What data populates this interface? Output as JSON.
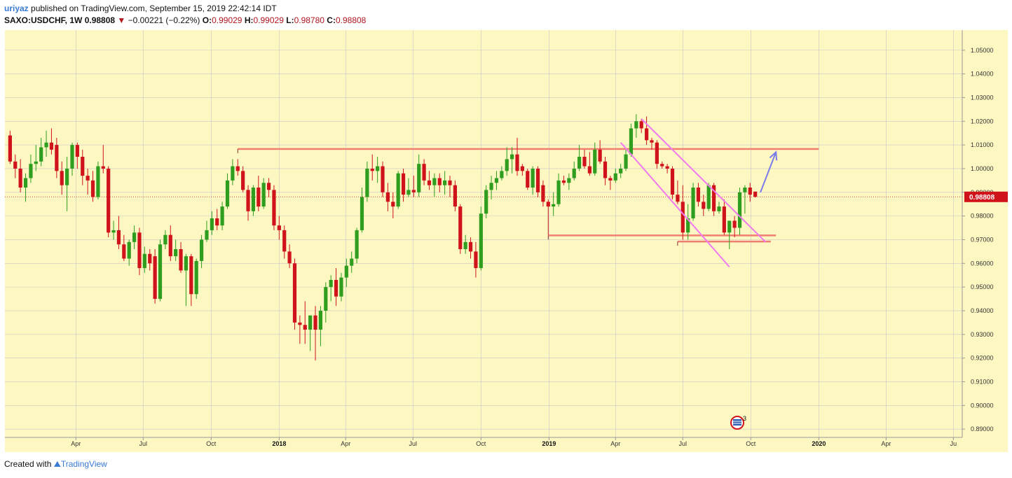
{
  "header": {
    "user": "uriyaz",
    "published": " published on TradingView.com, September 15, 2019 22:42:14 IDT",
    "symbol": "SAXO:USDCHF, 1W",
    "last": "0.98808",
    "arrow": "▼",
    "change": "−0.00221 (−0.22%)",
    "o_label": "O:",
    "o_val": "0.99029",
    "h_label": "H:",
    "h_val": "0.99029",
    "l_label": "L:",
    "l_val": "0.98780",
    "c_label": "C:",
    "c_val": "0.98808"
  },
  "footer": {
    "created": "Created with",
    "brand": "TradingView"
  },
  "event_badge": "3",
  "colors": {
    "background": "#fdf7c2",
    "grid": "#c8c8c8",
    "up": "#2f9e1f",
    "down": "#d0131b",
    "level": "#f07f71",
    "channel": "#f27af0",
    "arrow": "#7b7bea",
    "price_tag": "#d0131b"
  },
  "chart_data": {
    "type": "candlestick",
    "symbol": "SAXO:USDCHF",
    "interval": "1W",
    "ylim": [
      0.8865,
      1.0585
    ],
    "y_ticks": [
      "1.05000",
      "1.04000",
      "1.03000",
      "1.02000",
      "1.01000",
      "1.00000",
      "0.99000",
      "0.98000",
      "0.97000",
      "0.96000",
      "0.95000",
      "0.94000",
      "0.93000",
      "0.92000",
      "0.91000",
      "0.90000",
      "0.89000"
    ],
    "last_price_label": "0.98808",
    "x_ticks": [
      {
        "label": "Apr",
        "date": "2017-04-01",
        "bold": false
      },
      {
        "label": "Jul",
        "date": "2017-07-01",
        "bold": false
      },
      {
        "label": "Oct",
        "date": "2017-10-01",
        "bold": false
      },
      {
        "label": "2018",
        "date": "2018-01-01",
        "bold": true
      },
      {
        "label": "Apr",
        "date": "2018-04-01",
        "bold": false
      },
      {
        "label": "Jul",
        "date": "2018-07-01",
        "bold": false
      },
      {
        "label": "Oct",
        "date": "2018-10-01",
        "bold": false
      },
      {
        "label": "2019",
        "date": "2019-01-01",
        "bold": true
      },
      {
        "label": "Apr",
        "date": "2019-04-01",
        "bold": false
      },
      {
        "label": "Jul",
        "date": "2019-07-01",
        "bold": false
      },
      {
        "label": "Oct",
        "date": "2019-10-01",
        "bold": false
      },
      {
        "label": "2020",
        "date": "2020-01-01",
        "bold": true
      },
      {
        "label": "Apr",
        "date": "2020-04-01",
        "bold": false
      },
      {
        "label": "Ju",
        "date": "2020-07-01",
        "bold": false
      }
    ],
    "candles": [
      [
        "2017-01-02",
        1.014,
        1.016,
        1.002,
        1.003
      ],
      [
        "2017-01-09",
        1.003,
        1.006,
        0.996,
        1.0
      ],
      [
        "2017-01-16",
        1.0,
        1.004,
        0.99,
        0.992
      ],
      [
        "2017-01-23",
        0.992,
        0.998,
        0.986,
        0.996
      ],
      [
        "2017-01-30",
        0.996,
        1.006,
        0.994,
        1.002
      ],
      [
        "2017-02-06",
        1.002,
        1.01,
        0.999,
        1.003
      ],
      [
        "2017-02-13",
        1.003,
        1.013,
        1.001,
        1.009
      ],
      [
        "2017-02-20",
        1.009,
        1.016,
        1.005,
        1.011
      ],
      [
        "2017-02-27",
        1.011,
        1.017,
        1.006,
        1.008
      ],
      [
        "2017-03-06",
        1.01,
        1.013,
        0.996,
        0.999
      ],
      [
        "2017-03-13",
        0.999,
        1.003,
        0.989,
        0.993
      ],
      [
        "2017-03-20",
        0.993,
        1.005,
        0.982,
        1.0
      ],
      [
        "2017-03-27",
        1.0,
        1.011,
        0.997,
        1.01
      ],
      [
        "2017-04-03",
        1.01,
        1.011,
        1.0,
        1.005
      ],
      [
        "2017-04-10",
        1.005,
        1.008,
        0.993,
        0.997
      ],
      [
        "2017-04-17",
        0.997,
        1.0,
        0.989,
        0.995
      ],
      [
        "2017-04-24",
        0.995,
        0.999,
        0.986,
        0.988
      ],
      [
        "2017-05-01",
        0.988,
        1.003,
        0.987,
        1.001
      ],
      [
        "2017-05-08",
        1.001,
        1.01,
        0.998,
        1.0
      ],
      [
        "2017-05-15",
        1.0,
        1.001,
        0.971,
        0.973
      ],
      [
        "2017-05-22",
        0.973,
        0.978,
        0.97,
        0.974
      ],
      [
        "2017-05-29",
        0.974,
        0.98,
        0.966,
        0.968
      ],
      [
        "2017-06-05",
        0.968,
        0.972,
        0.961,
        0.962
      ],
      [
        "2017-06-12",
        0.962,
        0.97,
        0.959,
        0.969
      ],
      [
        "2017-06-19",
        0.969,
        0.976,
        0.966,
        0.973
      ],
      [
        "2017-06-26",
        0.973,
        0.975,
        0.955,
        0.958
      ],
      [
        "2017-07-03",
        0.958,
        0.967,
        0.956,
        0.964
      ],
      [
        "2017-07-10",
        0.964,
        0.966,
        0.957,
        0.96
      ],
      [
        "2017-07-17",
        0.963,
        0.966,
        0.943,
        0.945
      ],
      [
        "2017-07-24",
        0.945,
        0.97,
        0.944,
        0.968
      ],
      [
        "2017-07-31",
        0.968,
        0.974,
        0.966,
        0.972
      ],
      [
        "2017-08-07",
        0.972,
        0.976,
        0.961,
        0.963
      ],
      [
        "2017-08-14",
        0.963,
        0.97,
        0.961,
        0.966
      ],
      [
        "2017-08-21",
        0.966,
        0.969,
        0.956,
        0.957
      ],
      [
        "2017-08-28",
        0.957,
        0.964,
        0.942,
        0.963
      ],
      [
        "2017-09-04",
        0.963,
        0.964,
        0.942,
        0.947
      ],
      [
        "2017-09-11",
        0.947,
        0.962,
        0.945,
        0.961
      ],
      [
        "2017-09-18",
        0.961,
        0.972,
        0.958,
        0.97
      ],
      [
        "2017-09-25",
        0.97,
        0.978,
        0.969,
        0.974
      ],
      [
        "2017-10-02",
        0.974,
        0.982,
        0.972,
        0.979
      ],
      [
        "2017-10-09",
        0.979,
        0.983,
        0.974,
        0.976
      ],
      [
        "2017-10-16",
        0.976,
        0.986,
        0.974,
        0.984
      ],
      [
        "2017-10-23",
        0.984,
        0.998,
        0.983,
        0.995
      ],
      [
        "2017-10-30",
        0.995,
        1.004,
        0.993,
        1.001
      ],
      [
        "2017-11-06",
        1.001,
        1.004,
        0.997,
        0.999
      ],
      [
        "2017-11-13",
        0.999,
        1.001,
        0.99,
        0.991
      ],
      [
        "2017-11-20",
        0.991,
        0.993,
        0.978,
        0.982
      ],
      [
        "2017-11-27",
        0.982,
        0.993,
        0.98,
        0.992
      ],
      [
        "2017-12-04",
        0.992,
        0.997,
        0.982,
        0.984
      ],
      [
        "2017-12-11",
        0.984,
        0.996,
        0.983,
        0.994
      ],
      [
        "2017-12-18",
        0.994,
        0.996,
        0.988,
        0.991
      ],
      [
        "2017-12-25",
        0.991,
        0.993,
        0.974,
        0.976
      ],
      [
        "2018-01-01",
        0.976,
        0.98,
        0.97,
        0.974
      ],
      [
        "2018-01-08",
        0.974,
        0.976,
        0.962,
        0.965
      ],
      [
        "2018-01-15",
        0.965,
        0.968,
        0.958,
        0.96
      ],
      [
        "2018-01-22",
        0.96,
        0.962,
        0.932,
        0.935
      ],
      [
        "2018-01-29",
        0.935,
        0.938,
        0.926,
        0.934
      ],
      [
        "2018-02-05",
        0.934,
        0.944,
        0.926,
        0.932
      ],
      [
        "2018-02-12",
        0.932,
        0.938,
        0.923,
        0.938
      ],
      [
        "2018-02-19",
        0.938,
        0.942,
        0.919,
        0.932
      ],
      [
        "2018-02-26",
        0.932,
        0.942,
        0.925,
        0.94
      ],
      [
        "2018-03-05",
        0.94,
        0.952,
        0.935,
        0.95
      ],
      [
        "2018-03-12",
        0.95,
        0.955,
        0.944,
        0.953
      ],
      [
        "2018-03-19",
        0.953,
        0.958,
        0.942,
        0.946
      ],
      [
        "2018-03-26",
        0.946,
        0.956,
        0.944,
        0.954
      ],
      [
        "2018-04-02",
        0.954,
        0.962,
        0.95,
        0.959
      ],
      [
        "2018-04-09",
        0.959,
        0.965,
        0.956,
        0.962
      ],
      [
        "2018-04-16",
        0.962,
        0.975,
        0.96,
        0.974
      ],
      [
        "2018-04-23",
        0.974,
        0.992,
        0.973,
        0.988
      ],
      [
        "2018-04-30",
        0.988,
        1.003,
        0.986,
        1.0
      ],
      [
        "2018-05-07",
        1.0,
        1.006,
        0.995,
        0.999
      ],
      [
        "2018-05-14",
        0.999,
        1.005,
        0.994,
        1.001
      ],
      [
        "2018-05-21",
        1.001,
        1.003,
        0.988,
        0.99
      ],
      [
        "2018-05-28",
        0.99,
        0.994,
        0.982,
        0.986
      ],
      [
        "2018-06-04",
        0.986,
        0.99,
        0.979,
        0.984
      ],
      [
        "2018-06-11",
        0.984,
        0.999,
        0.983,
        0.998
      ],
      [
        "2018-06-18",
        0.998,
        1.0,
        0.986,
        0.989
      ],
      [
        "2018-06-25",
        0.989,
        0.996,
        0.988,
        0.991
      ],
      [
        "2018-07-02",
        0.991,
        0.997,
        0.988,
        0.99
      ],
      [
        "2018-07-09",
        0.99,
        1.006,
        0.988,
        1.002
      ],
      [
        "2018-07-16",
        1.002,
        1.004,
        0.993,
        0.995
      ],
      [
        "2018-07-23",
        0.995,
        0.999,
        0.991,
        0.993
      ],
      [
        "2018-07-30",
        0.993,
        0.998,
        0.988,
        0.996
      ],
      [
        "2018-08-06",
        0.996,
        0.998,
        0.99,
        0.993
      ],
      [
        "2018-08-13",
        0.993,
        0.999,
        0.989,
        0.995
      ],
      [
        "2018-08-20",
        0.995,
        0.997,
        0.988,
        0.993
      ],
      [
        "2018-08-27",
        0.993,
        0.995,
        0.982,
        0.984
      ],
      [
        "2018-09-03",
        0.984,
        0.985,
        0.964,
        0.966
      ],
      [
        "2018-09-10",
        0.966,
        0.972,
        0.964,
        0.969
      ],
      [
        "2018-09-17",
        0.969,
        0.971,
        0.962,
        0.965
      ],
      [
        "2018-09-24",
        0.965,
        0.969,
        0.954,
        0.958
      ],
      [
        "2018-10-01",
        0.958,
        0.984,
        0.957,
        0.981
      ],
      [
        "2018-10-08",
        0.981,
        0.993,
        0.979,
        0.991
      ],
      [
        "2018-10-15",
        0.991,
        0.997,
        0.987,
        0.994
      ],
      [
        "2018-10-22",
        0.994,
        0.999,
        0.991,
        0.996
      ],
      [
        "2018-10-29",
        0.996,
        1.001,
        0.995,
        0.999
      ],
      [
        "2018-11-05",
        0.999,
        1.009,
        0.997,
        1.004
      ],
      [
        "2018-11-12",
        1.004,
        1.009,
        0.998,
        1.006
      ],
      [
        "2018-11-19",
        1.006,
        1.013,
        0.997,
        0.999
      ],
      [
        "2018-11-26",
        1.001,
        1.002,
        0.997,
        0.999
      ],
      [
        "2018-12-03",
        0.999,
        1.0,
        0.991,
        0.992
      ],
      [
        "2018-12-10",
        0.992,
        1.001,
        0.989,
        1.0
      ],
      [
        "2018-12-17",
        1.0,
        1.001,
        0.988,
        0.99
      ],
      [
        "2018-12-24",
        0.993,
        0.995,
        0.984,
        0.986
      ],
      [
        "2018-12-31",
        0.986,
        0.987,
        0.972,
        0.984
      ],
      [
        "2019-01-07",
        0.984,
        0.99,
        0.98,
        0.985
      ],
      [
        "2019-01-14",
        0.985,
        0.998,
        0.984,
        0.995
      ],
      [
        "2019-01-21",
        0.995,
        0.997,
        0.993,
        0.994
      ],
      [
        "2019-01-28",
        0.994,
        0.998,
        0.991,
        0.996
      ],
      [
        "2019-02-04",
        0.996,
        1.003,
        0.995,
        1.0
      ],
      [
        "2019-02-11",
        1.0,
        1.01,
        0.999,
        1.005
      ],
      [
        "2019-02-18",
        1.005,
        1.008,
        1.0,
        1.001
      ],
      [
        "2019-02-25",
        1.001,
        1.007,
        0.997,
        0.998
      ],
      [
        "2019-03-04",
        0.998,
        1.011,
        0.997,
        1.008
      ],
      [
        "2019-03-11",
        1.008,
        1.012,
        1.002,
        1.003
      ],
      [
        "2019-03-18",
        1.003,
        1.005,
        0.993,
        0.996
      ],
      [
        "2019-03-25",
        0.996,
        0.997,
        0.991,
        0.995
      ],
      [
        "2019-04-01",
        0.995,
        1.0,
        0.994,
        0.998
      ],
      [
        "2019-04-08",
        0.998,
        1.002,
        0.996,
        1.0
      ],
      [
        "2019-04-15",
        1.0,
        1.008,
        0.999,
        1.006
      ],
      [
        "2019-04-22",
        1.006,
        1.019,
        1.005,
        1.017
      ],
      [
        "2019-04-29",
        1.017,
        1.023,
        1.013,
        1.02
      ],
      [
        "2019-05-06",
        1.02,
        1.021,
        1.015,
        1.017
      ],
      [
        "2019-05-13",
        1.017,
        1.022,
        1.01,
        1.012
      ],
      [
        "2019-05-20",
        1.012,
        1.013,
        1.008,
        1.011
      ],
      [
        "2019-05-27",
        1.011,
        1.012,
        1.0,
        1.002
      ],
      [
        "2019-06-03",
        1.002,
        1.003,
        1.0,
        1.001
      ],
      [
        "2019-06-10",
        1.001,
        1.002,
        0.998,
        1.0
      ],
      [
        "2019-06-17",
        1.0,
        1.001,
        0.987,
        0.989
      ],
      [
        "2019-06-24",
        0.989,
        0.995,
        0.985,
        0.986
      ],
      [
        "2019-07-01",
        0.986,
        0.993,
        0.97,
        0.973
      ],
      [
        "2019-07-08",
        0.973,
        0.985,
        0.97,
        0.979
      ],
      [
        "2019-07-15",
        0.979,
        0.994,
        0.978,
        0.992
      ],
      [
        "2019-07-22",
        0.992,
        0.994,
        0.984,
        0.986
      ],
      [
        "2019-07-29",
        0.986,
        0.989,
        0.98,
        0.983
      ],
      [
        "2019-08-05",
        0.983,
        0.994,
        0.982,
        0.993
      ],
      [
        "2019-08-12",
        0.993,
        0.994,
        0.98,
        0.982
      ],
      [
        "2019-08-19",
        0.982,
        0.986,
        0.981,
        0.984
      ],
      [
        "2019-08-26",
        0.984,
        0.987,
        0.972,
        0.973
      ],
      [
        "2019-09-02",
        0.973,
        0.978,
        0.966,
        0.978
      ],
      [
        "2019-09-09",
        0.978,
        0.98,
        0.971,
        0.975
      ],
      [
        "2019-09-16",
        0.975,
        0.992,
        0.972,
        0.99
      ],
      [
        "2019-09-23",
        0.99,
        0.993,
        0.981,
        0.992
      ],
      [
        "2019-09-30",
        0.992,
        0.994,
        0.986,
        0.989
      ],
      [
        "2019-10-07",
        0.9903,
        0.9903,
        0.9878,
        0.98808
      ]
    ],
    "annotations": {
      "horizontal_levels": [
        {
          "price": 1.0083,
          "from": "2017-11-06",
          "to": "2020-01-01"
        },
        {
          "price": 0.9718,
          "from": "2018-12-31",
          "to": "2019-11-04"
        },
        {
          "price": 0.9692,
          "from": "2019-06-24",
          "to": "2019-10-28"
        }
      ],
      "channel_lines": [
        {
          "from": [
            "2019-05-06",
            1.021
          ],
          "to": [
            "2019-10-21",
            0.969
          ]
        },
        {
          "from": [
            "2019-04-08",
            1.011
          ],
          "to": [
            "2019-09-02",
            0.9585
          ]
        }
      ],
      "projection_arrow": {
        "from": [
          "2019-10-14",
          0.99
        ],
        "to": [
          "2019-11-04",
          1.007
        ]
      }
    }
  }
}
